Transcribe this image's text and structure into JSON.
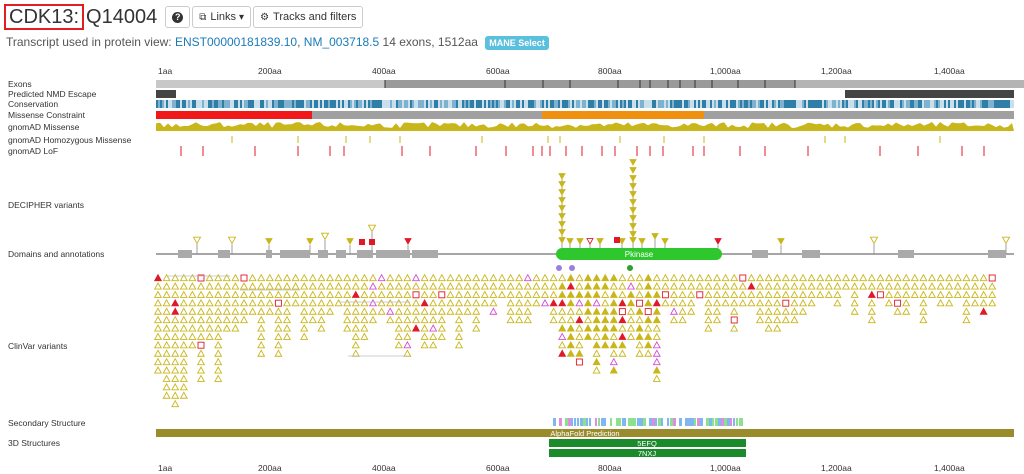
{
  "header": {
    "gene": "CDK13:",
    "accession": "Q14004",
    "help_icon": "question-circle-icon",
    "links_label": "Links",
    "tracks_label": "Tracks and filters"
  },
  "transcript": {
    "prefix": "Transcript used in protein view:",
    "ensembl": "ENST00000181839.10",
    "sep": ",",
    "refseq": "NM_003718.5",
    "exons": "14 exons,",
    "length": "1512aa",
    "badge": "MANE Select"
  },
  "ticks_top": [
    "1aa",
    "200aa",
    "400aa",
    "600aa",
    "800aa",
    "1,000aa",
    "1,200aa",
    "1,400aa"
  ],
  "ticks_bottom": [
    "1aa",
    "200aa",
    "400aa",
    "600aa",
    "800aa",
    "1,000aa",
    "1,200aa",
    "1,400aa"
  ],
  "tracks": {
    "exons": "Exons",
    "nmd": "Predicted NMD Escape",
    "conservation": "Conservation",
    "missense_constraint": "Missense Constraint",
    "gnomad_missense": "gnomAD Missense",
    "gnomad_hom": "gnomAD Homozygous Missense",
    "gnomad_lof": "gnomAD LoF",
    "decipher": "DECIPHER variants",
    "domains": "Domains and annotations",
    "clinvar": "ClinVar variants",
    "secondary": "Secondary Structure",
    "structures": "3D Structures"
  },
  "domain_label": "Pkinase",
  "structures": [
    "AlphaFold Prediction",
    "5EFQ",
    "7NXJ"
  ],
  "colors": {
    "benign": "#c8b62a",
    "pathogenic": "#e0182a",
    "vus": "#c8b62a",
    "conflicting": "#d34cd3",
    "domain": "#2ec72e",
    "structure": "#1a8a2a",
    "alphafold": "#9a8c2c"
  }
}
